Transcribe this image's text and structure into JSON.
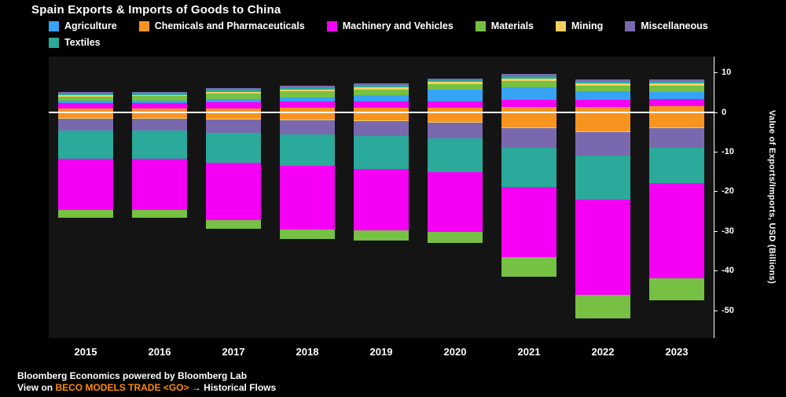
{
  "header": {
    "title": "Spain Exports & Imports of Goods to China"
  },
  "legend": {
    "items": [
      {
        "label": "Agriculture",
        "color": "#36a3f5"
      },
      {
        "label": "Chemicals and Pharmaceuticals",
        "color": "#f79420"
      },
      {
        "label": "Machinery and Vehicles",
        "color": "#f500f5"
      },
      {
        "label": "Materials",
        "color": "#76c043"
      },
      {
        "label": "Mining",
        "color": "#f2d060"
      },
      {
        "label": "Miscellaneous",
        "color": "#7a68ae"
      },
      {
        "label": "Textiles",
        "color": "#2ba99a"
      }
    ]
  },
  "chart_data": {
    "type": "bar",
    "subtype": "diverging-stacked",
    "title": "Spain Exports & Imports of Goods to China",
    "ylabel": "Value of Exports/Imports, USD (Billions)",
    "unit": "USD Billions",
    "categories": [
      "2015",
      "2016",
      "2017",
      "2018",
      "2019",
      "2020",
      "2021",
      "2022",
      "2023"
    ],
    "ylim": [
      -57,
      14
    ],
    "yticks": [
      10,
      0,
      -10,
      -20,
      -30,
      -40,
      -50
    ],
    "grid": false,
    "legend_position": "top",
    "series_exports": [
      {
        "name": "Chemicals and Pharmaceuticals",
        "color": "#f79420",
        "values": [
          0.9,
          0.9,
          1.0,
          1.1,
          1.1,
          1.2,
          1.4,
          1.4,
          1.5
        ]
      },
      {
        "name": "Machinery and Vehicles",
        "color": "#f500f5",
        "values": [
          1.3,
          1.3,
          1.5,
          1.6,
          1.6,
          1.5,
          1.7,
          1.6,
          1.8
        ]
      },
      {
        "name": "Agriculture",
        "color": "#36a3f5",
        "values": [
          0.6,
          0.6,
          0.8,
          1.0,
          1.5,
          3.0,
          3.2,
          2.2,
          1.8
        ]
      },
      {
        "name": "Materials",
        "color": "#76c043",
        "values": [
          1.1,
          1.2,
          1.4,
          1.5,
          1.5,
          1.4,
          1.6,
          1.5,
          1.6
        ]
      },
      {
        "name": "Mining",
        "color": "#f2d060",
        "values": [
          0.3,
          0.3,
          0.4,
          0.5,
          0.5,
          0.5,
          0.6,
          0.6,
          0.6
        ]
      },
      {
        "name": "Textiles",
        "color": "#2ba99a",
        "values": [
          0.5,
          0.5,
          0.6,
          0.6,
          0.6,
          0.5,
          0.6,
          0.5,
          0.5
        ]
      },
      {
        "name": "Miscellaneous",
        "color": "#7a68ae",
        "values": [
          0.3,
          0.3,
          0.3,
          0.4,
          0.4,
          0.4,
          0.5,
          0.4,
          0.5
        ]
      }
    ],
    "series_imports": [
      {
        "name": "Agriculture",
        "color": "#36a3f5",
        "values": [
          -0.3,
          -0.3,
          -0.3,
          -0.3,
          -0.3,
          -0.3,
          -0.3,
          -0.3,
          -0.3
        ]
      },
      {
        "name": "Chemicals and Pharmaceuticals",
        "color": "#f79420",
        "values": [
          -1.2,
          -1.2,
          -1.4,
          -1.6,
          -1.8,
          -2.2,
          -3.5,
          -4.5,
          -3.5
        ]
      },
      {
        "name": "Mining",
        "color": "#f2d060",
        "values": [
          -0.2,
          -0.2,
          -0.2,
          -0.2,
          -0.2,
          -0.2,
          -0.2,
          -0.2,
          -0.2
        ]
      },
      {
        "name": "Miscellaneous",
        "color": "#7a68ae",
        "values": [
          -3.0,
          -3.0,
          -3.3,
          -3.5,
          -3.8,
          -4.0,
          -5.0,
          -6.0,
          -5.0
        ]
      },
      {
        "name": "Textiles",
        "color": "#2ba99a",
        "values": [
          -7.0,
          -7.0,
          -7.6,
          -8.0,
          -8.3,
          -8.5,
          -10.0,
          -11.0,
          -9.0
        ]
      },
      {
        "name": "Machinery and Vehicles",
        "color": "#f500f5",
        "values": [
          -13.0,
          -13.0,
          -14.5,
          -16.0,
          -15.5,
          -15.0,
          -17.5,
          -24.0,
          -24.0
        ]
      },
      {
        "name": "Materials",
        "color": "#76c043",
        "values": [
          -2.0,
          -2.0,
          -2.2,
          -2.4,
          -2.6,
          -2.8,
          -5.0,
          -6.0,
          -5.5
        ]
      }
    ],
    "totals_exports": [
      5.0,
      5.1,
      6.0,
      6.7,
      7.2,
      8.5,
      9.6,
      8.2,
      8.3
    ],
    "totals_imports": [
      -26.7,
      -26.7,
      -29.5,
      -32.0,
      -32.5,
      -33.0,
      -41.5,
      -52.0,
      -47.5
    ]
  },
  "axis": {
    "ylabel": "Value of Exports/Imports, USD (Billions)"
  },
  "footer": {
    "line1": "Bloomberg Economics powered by Bloomberg Lab",
    "line2_prefix": "View on ",
    "line2_link": "BECO MODELS TRADE <GO>",
    "line2_suffix": " → Historical Flows",
    "link_color": "#ff8c00"
  }
}
